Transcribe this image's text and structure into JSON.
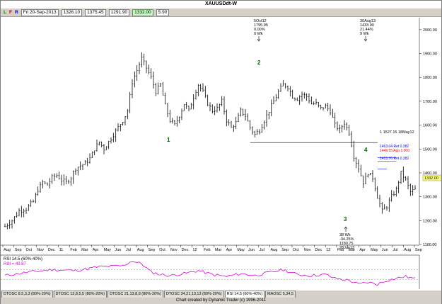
{
  "window_title": "XAUUSDdt-W",
  "toolbar": {
    "l": "L",
    "f": "F",
    "r": "R",
    "date": "Fri 20-Sep-2013",
    "open": "1326.10",
    "high": "1375.45",
    "low": "1291.90",
    "close": "1332.00",
    "range": "5.90"
  },
  "last_price_label": "1332.00",
  "annotations": {
    "top_left": [
      "5Oct12",
      "1795.95",
      "0.00%",
      "0 Wk"
    ],
    "top_right": [
      "30Aug13",
      "1433.90",
      "21.44%",
      "9 Wk"
    ],
    "bottom": [
      "38 Wk",
      "-34.25%",
      "1180.75",
      "28Jun13"
    ],
    "hline": "1 1527.15 18May12",
    "fib1": "1463.04 Ret 0.382",
    "fib2": "1449.55 App 1.000",
    "fib3": "1415.76 Ret 0.382",
    "wave_labels": [
      "1",
      "2",
      "3",
      "4"
    ]
  },
  "rsi_label": "RSI 14.5 (60%-40%)",
  "rsi_value": "RSI = 40.87",
  "tabs": [
    "DTOSC 8.5,3,3 (80%-20%)",
    "DTOSC 13,8,5,5 (80%-20%)",
    "DTOSC 21,13,8,8 (80%-20%)",
    "DTOSC 34,21,13,13 (80%-20%)",
    "RSI 14.5 (60%-40%)",
    "MAOSC 5,34,5"
  ],
  "footer": "Chart created by Dynamic Trader  (c) 1996-2011",
  "colors": {
    "rsi": "#e000e0",
    "fib_blue": "#0000ff",
    "fib_red": "#ff0000",
    "wave": "#006400"
  },
  "chart_data": {
    "type": "ohlc",
    "title": "XAUUSDdt-W",
    "ylim": [
      1100,
      2050
    ],
    "y_ticks": [
      1100,
      1200,
      1300,
      1400,
      1500,
      1600,
      1700,
      1800,
      1900,
      2000
    ],
    "x_tick_labels": [
      "Aug",
      "Sep",
      "Oct",
      "Nov",
      "Dec",
      "11",
      "Feb",
      "Mar",
      "Apr",
      "May",
      "Jun",
      "Jul",
      "Aug",
      "Sep",
      "Oct",
      "Nov",
      "Dec",
      "12",
      "Feb",
      "Mar",
      "Apr",
      "May",
      "Jun",
      "Jul",
      "Aug",
      "Sep",
      "Oct",
      "Nov",
      "Dec",
      "13",
      "Feb",
      "Mar",
      "Apr",
      "May",
      "Jun",
      "Jul",
      "Aug",
      "Sep"
    ],
    "close_path": [
      [
        0,
        1175
      ],
      [
        3,
        1200
      ],
      [
        6,
        1240
      ],
      [
        9,
        1250
      ],
      [
        12,
        1280
      ],
      [
        14,
        1330
      ],
      [
        16,
        1360
      ],
      [
        18,
        1350
      ],
      [
        20,
        1380
      ],
      [
        22,
        1390
      ],
      [
        24,
        1370
      ],
      [
        26,
        1360
      ],
      [
        28,
        1380
      ],
      [
        30,
        1420
      ],
      [
        32,
        1430
      ],
      [
        34,
        1440
      ],
      [
        36,
        1460
      ],
      [
        38,
        1500
      ],
      [
        40,
        1530
      ],
      [
        42,
        1500
      ],
      [
        44,
        1530
      ],
      [
        46,
        1560
      ],
      [
        48,
        1590
      ],
      [
        50,
        1620
      ],
      [
        52,
        1660
      ],
      [
        54,
        1780
      ],
      [
        56,
        1830
      ],
      [
        58,
        1880
      ],
      [
        60,
        1840
      ],
      [
        62,
        1800
      ],
      [
        64,
        1740
      ],
      [
        66,
        1770
      ],
      [
        68,
        1680
      ],
      [
        70,
        1620
      ],
      [
        72,
        1600
      ],
      [
        74,
        1640
      ],
      [
        76,
        1690
      ],
      [
        78,
        1660
      ],
      [
        80,
        1720
      ],
      [
        82,
        1770
      ],
      [
        84,
        1740
      ],
      [
        86,
        1690
      ],
      [
        88,
        1660
      ],
      [
        90,
        1670
      ],
      [
        92,
        1700
      ],
      [
        94,
        1620
      ],
      [
        96,
        1590
      ],
      [
        98,
        1610
      ],
      [
        100,
        1660
      ],
      [
        102,
        1640
      ],
      [
        104,
        1590
      ],
      [
        106,
        1560
      ],
      [
        108,
        1580
      ],
      [
        110,
        1620
      ],
      [
        112,
        1660
      ],
      [
        114,
        1700
      ],
      [
        116,
        1740
      ],
      [
        118,
        1770
      ],
      [
        120,
        1760
      ],
      [
        122,
        1720
      ],
      [
        124,
        1710
      ],
      [
        126,
        1730
      ],
      [
        128,
        1720
      ],
      [
        130,
        1690
      ],
      [
        132,
        1690
      ],
      [
        134,
        1670
      ],
      [
        136,
        1680
      ],
      [
        138,
        1660
      ],
      [
        140,
        1600
      ],
      [
        142,
        1580
      ],
      [
        144,
        1610
      ],
      [
        146,
        1570
      ],
      [
        148,
        1470
      ],
      [
        150,
        1420
      ],
      [
        152,
        1360
      ],
      [
        154,
        1400
      ],
      [
        156,
        1380
      ],
      [
        158,
        1300
      ],
      [
        160,
        1240
      ],
      [
        162,
        1260
      ],
      [
        164,
        1300
      ],
      [
        166,
        1330
      ],
      [
        168,
        1400
      ],
      [
        170,
        1370
      ],
      [
        172,
        1320
      ],
      [
        174,
        1332
      ]
    ],
    "rsi": [
      [
        0,
        48
      ],
      [
        10,
        55
      ],
      [
        20,
        60
      ],
      [
        30,
        58
      ],
      [
        40,
        66
      ],
      [
        50,
        68
      ],
      [
        54,
        78
      ],
      [
        58,
        72
      ],
      [
        62,
        55
      ],
      [
        66,
        50
      ],
      [
        70,
        48
      ],
      [
        76,
        52
      ],
      [
        82,
        58
      ],
      [
        88,
        50
      ],
      [
        94,
        46
      ],
      [
        100,
        52
      ],
      [
        106,
        48
      ],
      [
        112,
        54
      ],
      [
        118,
        60
      ],
      [
        124,
        50
      ],
      [
        130,
        48
      ],
      [
        136,
        50
      ],
      [
        140,
        42
      ],
      [
        146,
        38
      ],
      [
        150,
        30
      ],
      [
        154,
        34
      ],
      [
        158,
        30
      ],
      [
        162,
        38
      ],
      [
        166,
        42
      ],
      [
        170,
        46
      ],
      [
        174,
        41
      ]
    ],
    "rsi_value": 40.87
  }
}
